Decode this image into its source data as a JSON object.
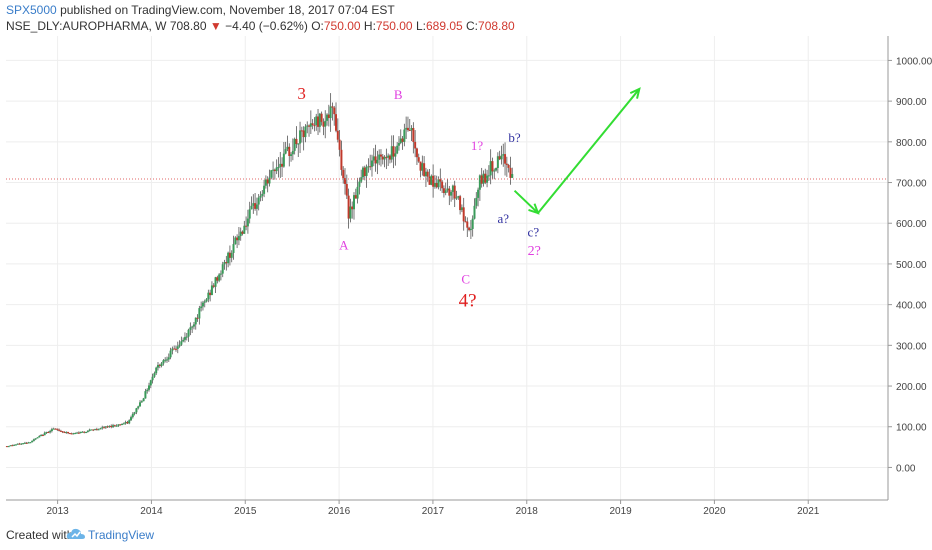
{
  "header": {
    "publisher": "SPX5000",
    "published_text": "published on TradingView.com, November 18, 2017 07:04 EST",
    "symbol": "NSE_DLY:AUROPHARMA, W",
    "last": "708.80",
    "change": "−4.40 (−0.62%)",
    "open_label": "O:",
    "open": "750.00",
    "high_label": "H:",
    "high": "750.00",
    "low_label": "L:",
    "low": "689.05",
    "close_label": "C:",
    "close": "708.80"
  },
  "footer": {
    "created_with": "Created with",
    "brand": "TradingView"
  },
  "colors": {
    "up": "#3a9b5a",
    "down": "#c0392b",
    "price_line": "#e06666",
    "wave_red": "#e02020",
    "wave_magenta": "#e040e0",
    "wave_navy": "#3030a0",
    "arrow": "#33dd33",
    "grid": "#eeeeee",
    "axis_text": "#444444"
  },
  "chart_data": {
    "type": "candlestick",
    "x_tick_labels": [
      "2013",
      "2014",
      "2015",
      "2016",
      "2017",
      "2018",
      "2019",
      "2020",
      "2021"
    ],
    "y_tick_labels": [
      "0.00",
      "100.00",
      "200.00",
      "300.00",
      "400.00",
      "500.00",
      "600.00",
      "700.00",
      "800.00",
      "900.00",
      "1000.00"
    ],
    "ylim": [
      -80,
      1060
    ],
    "xlim": [
      2012.45,
      2021.85
    ],
    "last_price": 708.8,
    "price_path": [
      {
        "x": 2012.45,
        "y": 52
      },
      {
        "x": 2012.7,
        "y": 62
      },
      {
        "x": 2012.95,
        "y": 95
      },
      {
        "x": 2013.15,
        "y": 82
      },
      {
        "x": 2013.45,
        "y": 96
      },
      {
        "x": 2013.75,
        "y": 110
      },
      {
        "x": 2013.92,
        "y": 175
      },
      {
        "x": 2014.05,
        "y": 245
      },
      {
        "x": 2014.35,
        "y": 315
      },
      {
        "x": 2014.6,
        "y": 420
      },
      {
        "x": 2014.9,
        "y": 555
      },
      {
        "x": 2015.05,
        "y": 620
      },
      {
        "x": 2015.3,
        "y": 730
      },
      {
        "x": 2015.55,
        "y": 800
      },
      {
        "x": 2015.75,
        "y": 850
      },
      {
        "x": 2015.95,
        "y": 870
      },
      {
        "x": 2016.1,
        "y": 625
      },
      {
        "x": 2016.3,
        "y": 750
      },
      {
        "x": 2016.55,
        "y": 770
      },
      {
        "x": 2016.75,
        "y": 840
      },
      {
        "x": 2016.9,
        "y": 720
      },
      {
        "x": 2017.1,
        "y": 690
      },
      {
        "x": 2017.25,
        "y": 675
      },
      {
        "x": 2017.38,
        "y": 565
      },
      {
        "x": 2017.5,
        "y": 700
      },
      {
        "x": 2017.65,
        "y": 745
      },
      {
        "x": 2017.78,
        "y": 755
      },
      {
        "x": 2017.85,
        "y": 710
      }
    ],
    "annotations": [
      {
        "text": "3",
        "x": 2015.6,
        "y": 905,
        "color": "wave_red",
        "size": 17
      },
      {
        "text": "A",
        "x": 2016.05,
        "y": 535,
        "color": "wave_magenta",
        "size": 13
      },
      {
        "text": "B",
        "x": 2016.63,
        "y": 905,
        "color": "wave_magenta",
        "size": 13
      },
      {
        "text": "1?",
        "x": 2017.47,
        "y": 780,
        "color": "wave_magenta",
        "size": 13
      },
      {
        "text": "b?",
        "x": 2017.87,
        "y": 800,
        "color": "wave_navy",
        "size": 13
      },
      {
        "text": "a?",
        "x": 2017.75,
        "y": 600,
        "color": "wave_navy",
        "size": 13
      },
      {
        "text": "c?",
        "x": 2018.07,
        "y": 568,
        "color": "wave_navy",
        "size": 13
      },
      {
        "text": "2?",
        "x": 2018.08,
        "y": 522,
        "color": "wave_magenta",
        "size": 14
      },
      {
        "text": "C",
        "x": 2017.35,
        "y": 452,
        "color": "wave_magenta",
        "size": 13
      },
      {
        "text": "4?",
        "x": 2017.37,
        "y": 395,
        "color": "wave_red",
        "size": 19
      }
    ],
    "projection": [
      {
        "x": 2017.87,
        "y": 680
      },
      {
        "x": 2018.12,
        "y": 625
      },
      {
        "x": 2019.2,
        "y": 930
      }
    ]
  }
}
